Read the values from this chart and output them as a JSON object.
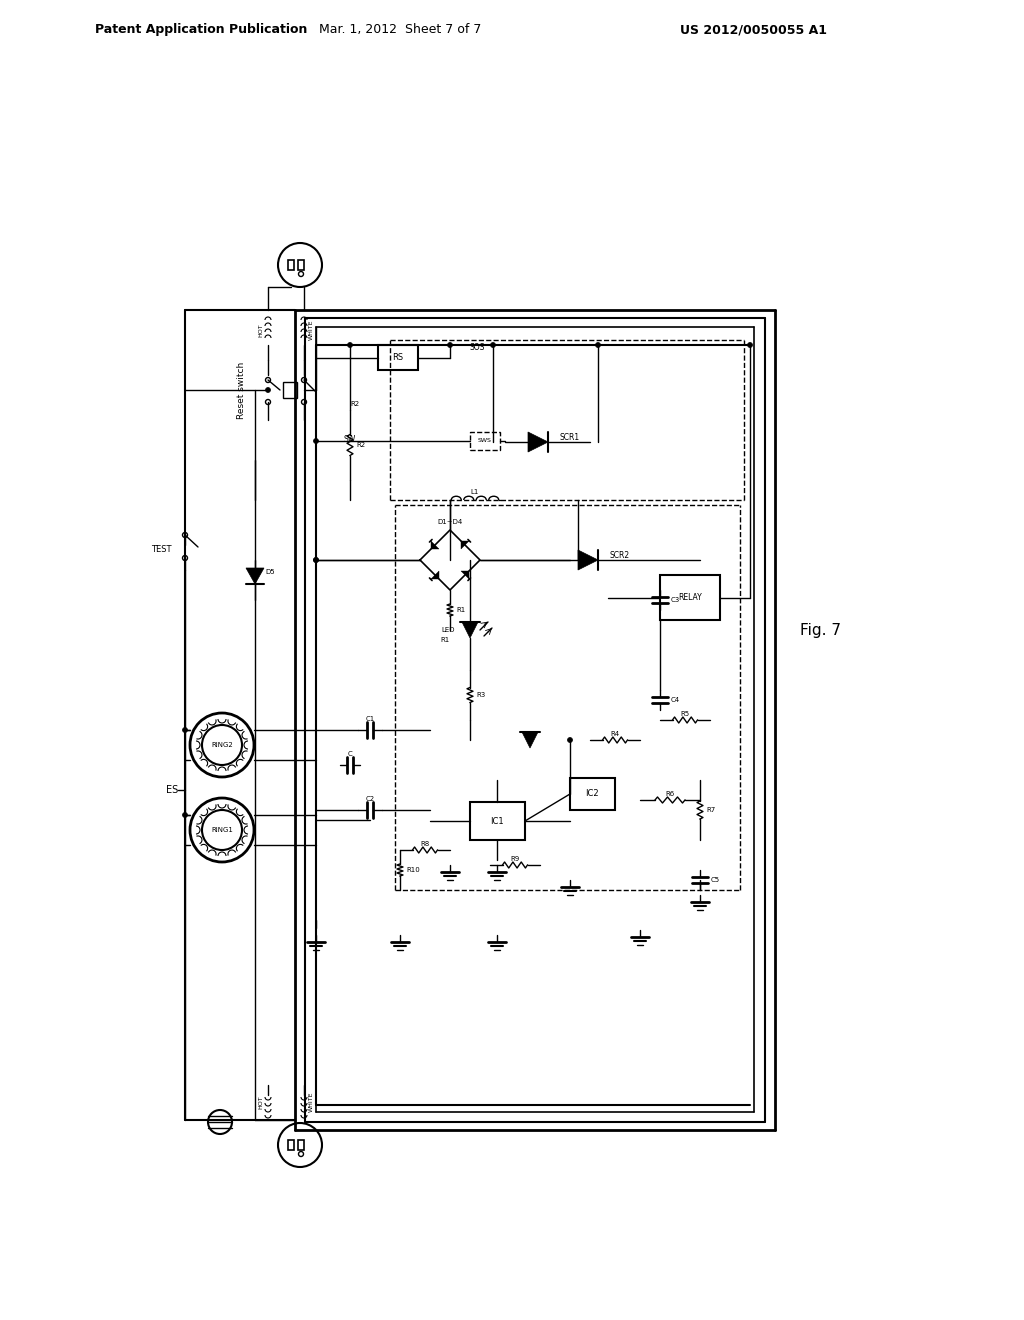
{
  "background_color": "#ffffff",
  "header_left": "Patent Application Publication",
  "header_center": "Mar. 1, 2012  Sheet 7 of 7",
  "header_right": "US 2012/0050055 A1",
  "fig_label": "Fig. 7",
  "fig_width": 10.24,
  "fig_height": 13.2,
  "line_color": "#000000"
}
